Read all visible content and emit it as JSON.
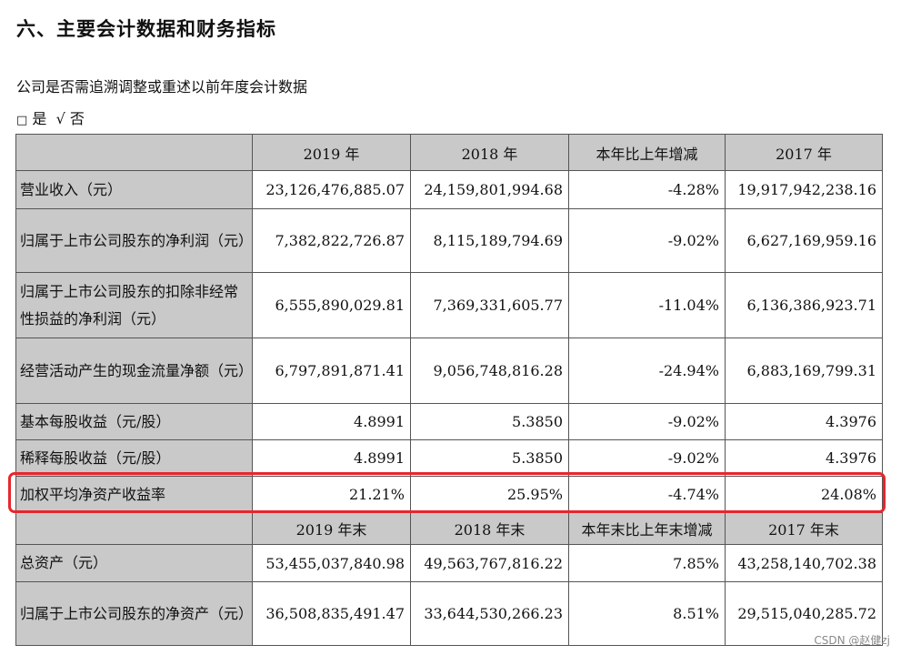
{
  "section_title": "六、主要会计数据和财务指标",
  "retro_question": "公司是否需追溯调整或重述以前年度会计数据",
  "options": {
    "unchecked_box": "□",
    "yes": "是",
    "check_mark": "√",
    "no": "否"
  },
  "table1": {
    "headers": [
      "2019 年",
      "2018 年",
      "本年比上年增减",
      "2017 年"
    ],
    "rows": [
      {
        "label": "营业收入（元）",
        "values": [
          "23,126,476,885.07",
          "24,159,801,994.68",
          "-4.28%",
          "19,917,942,238.16"
        ]
      },
      {
        "label": "归属于上市公司股东的净利润（元）",
        "values": [
          "7,382,822,726.87",
          "8,115,189,794.69",
          "-9.02%",
          "6,627,169,959.16"
        ]
      },
      {
        "label": "归属于上市公司股东的扣除非经常性损益的净利润（元）",
        "values": [
          "6,555,890,029.81",
          "7,369,331,605.77",
          "-11.04%",
          "6,136,386,923.71"
        ]
      },
      {
        "label": "经营活动产生的现金流量净额（元）",
        "values": [
          "6,797,891,871.41",
          "9,056,748,816.28",
          "-24.94%",
          "6,883,169,799.31"
        ]
      },
      {
        "label": "基本每股收益（元/股）",
        "values": [
          "4.8991",
          "5.3850",
          "-9.02%",
          "4.3976"
        ]
      },
      {
        "label": "稀释每股收益（元/股）",
        "values": [
          "4.8991",
          "5.3850",
          "-9.02%",
          "4.3976"
        ]
      },
      {
        "label": "加权平均净资产收益率",
        "values": [
          "21.21%",
          "25.95%",
          "-4.74%",
          "24.08%"
        ]
      }
    ]
  },
  "table2": {
    "headers": [
      "2019 年末",
      "2018 年末",
      "本年末比上年末增减",
      "2017 年末"
    ],
    "rows": [
      {
        "label": "总资产（元）",
        "values": [
          "53,455,037,840.98",
          "49,563,767,816.22",
          "7.85%",
          "43,258,140,702.38"
        ]
      },
      {
        "label": "归属于上市公司股东的净资产（元）",
        "values": [
          "36,508,835,491.47",
          "33,644,530,266.23",
          "8.51%",
          "29,515,040,285.72"
        ]
      }
    ]
  },
  "highlight_color": "#e8262c",
  "header_bg": "#c9c9c9",
  "watermark": "CSDN @赵健zj"
}
